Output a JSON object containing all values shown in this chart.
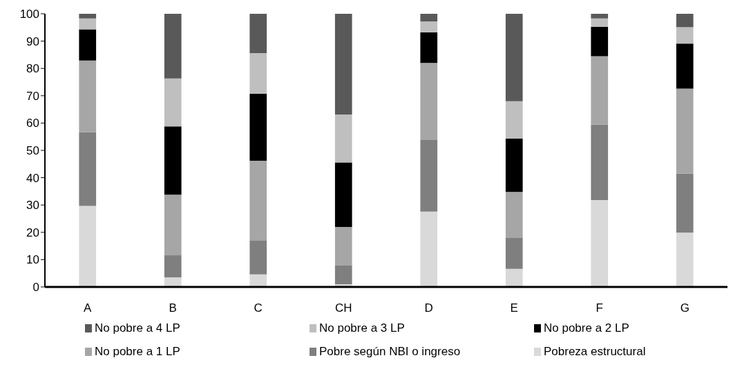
{
  "chart_data": {
    "type": "bar",
    "stacked": true,
    "categories": [
      "A",
      "B",
      "C",
      "CH",
      "D",
      "E",
      "F",
      "G"
    ],
    "series": [
      {
        "name": "Pobreza estructural",
        "color": "#d9d9d9",
        "values": [
          29.7,
          3.5,
          4.6,
          1.0,
          27.6,
          6.6,
          31.8,
          19.9
        ]
      },
      {
        "name": "Pobre según NBI o ingreso",
        "color": "#7f7f7f",
        "values": [
          27,
          8.1,
          12.3,
          7.0,
          26.2,
          11.3,
          27.6,
          21.6
        ]
      },
      {
        "name": "No pobre a 1 LP",
        "color": "#a6a6a6",
        "values": [
          26.2,
          22.2,
          29.3,
          14.0,
          28.2,
          16.9,
          25.1,
          31.1
        ]
      },
      {
        "name": "No pobre a 2 LP",
        "color": "#000000",
        "values": [
          11.4,
          25,
          24.5,
          23.6,
          11.2,
          19.5,
          10.7,
          16.5
        ]
      },
      {
        "name": "No pobre a 3 LP",
        "color": "#bfbfbf",
        "values": [
          4,
          17.5,
          14.9,
          17.5,
          4.0,
          13.7,
          3.1,
          6.0
        ]
      },
      {
        "name": "No pobre a 4 LP",
        "color": "#595959",
        "values": [
          1.7,
          23.7,
          14.4,
          36.9,
          2.8,
          32,
          1.7,
          4.9
        ]
      }
    ],
    "ylim": [
      0,
      100
    ],
    "yticks": [
      0,
      10,
      20,
      30,
      40,
      50,
      60,
      70,
      80,
      90,
      100
    ],
    "grid": false,
    "legend": "bottom"
  }
}
